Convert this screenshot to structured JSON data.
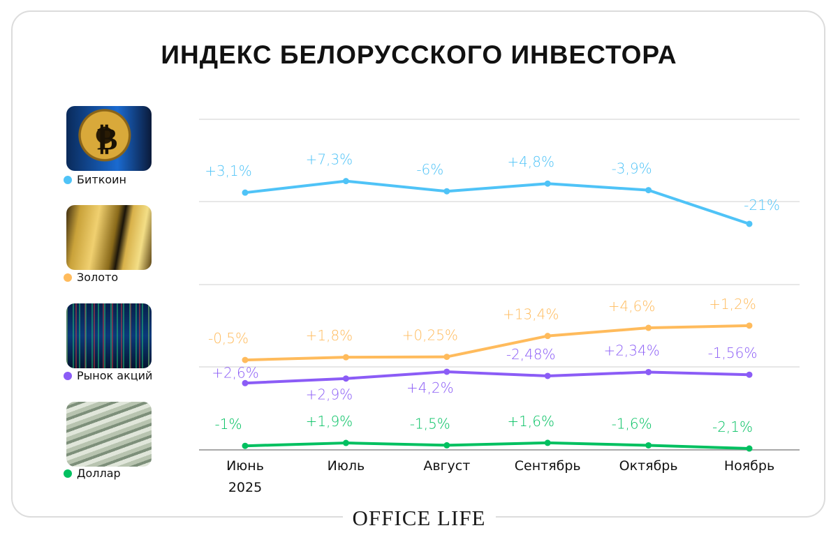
{
  "title": "ИНДЕКС БЕЛОРУССКОГО ИНВЕСТОРА",
  "logo": "OFFICE LIFE",
  "chart_data": {
    "type": "line",
    "title": "ИНДЕКС БЕЛОРУССКОГО ИНВЕСТОРА",
    "categories": [
      "Июнь",
      "Июль",
      "Август",
      "Сентябрь",
      "Октябрь",
      "Ноябрь"
    ],
    "category_sublabels": [
      "2025",
      "",
      "",
      "",
      "",
      ""
    ],
    "grid": true,
    "legend_placement": "left",
    "series": [
      {
        "name": "Биткоин",
        "color": "#4fc3f7",
        "icon": "bitcoin-photo",
        "values": [
          3.1,
          7.3,
          -6,
          4.8,
          -3.9,
          -21
        ],
        "labels": [
          "+3,1%",
          "+7,3%",
          "-6%",
          "+4,8%",
          "-3,9%",
          "-21%"
        ]
      },
      {
        "name": "Золото",
        "color": "#ffbb5c",
        "icon": "gold-bars-photo",
        "values": [
          -0.5,
          1.8,
          0.25,
          13.4,
          4.6,
          1.2
        ],
        "labels": [
          "-0,5%",
          "+1,8%",
          "+0,25%",
          "+13,4%",
          "+4,6%",
          "+1,2%"
        ]
      },
      {
        "name": "Рынок акций",
        "color": "#8b5cf6",
        "icon": "stock-chart-photo",
        "values": [
          2.6,
          2.9,
          4.2,
          -2.48,
          2.34,
          -1.56
        ],
        "labels": [
          "+2,6%",
          "+2,9%",
          "+4,2%",
          "-2,48%",
          "+2,34%",
          "-1,56%"
        ]
      },
      {
        "name": "Доллар",
        "color": "#00c060",
        "icon": "dollar-bills-photo",
        "values": [
          -1,
          1.9,
          -1.5,
          1.6,
          -1.6,
          -2.1
        ],
        "labels": [
          "-1%",
          "+1,9%",
          "-1,5%",
          "+1,6%",
          "-1,6%",
          "-2,1%"
        ]
      }
    ]
  }
}
